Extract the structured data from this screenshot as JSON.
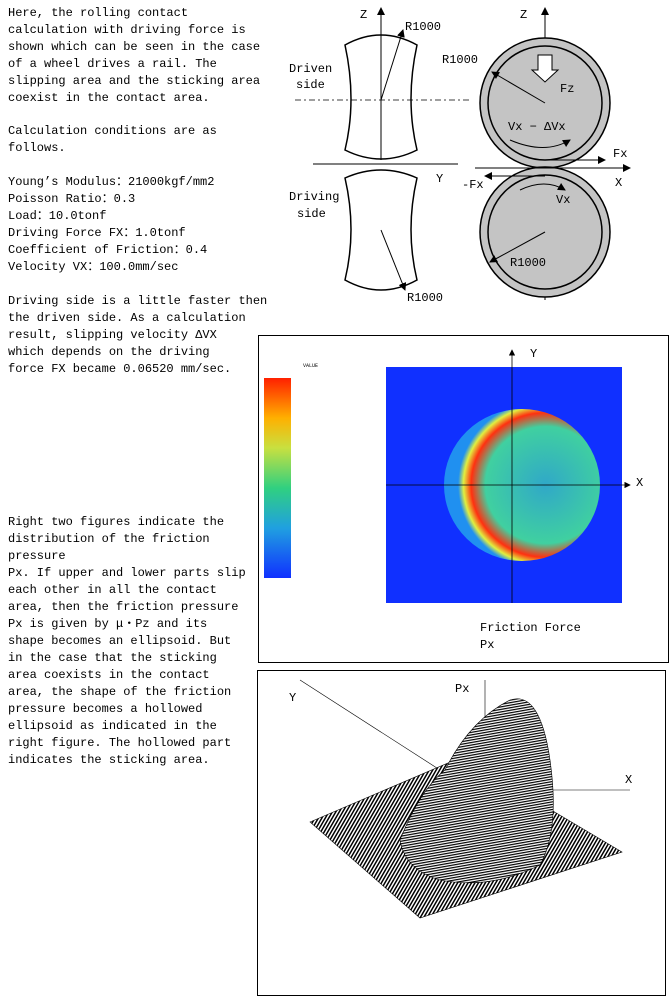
{
  "text": {
    "paragraphs": [
      [
        "Here, the rolling contact",
        "calculation with driving force is",
        "shown which can be seen in the case",
        "of a wheel drives a rail. The",
        "slipping area and the sticking area",
        "coexist in the contact area."
      ],
      [
        "Calculation conditions are as",
        "follows."
      ],
      [
        "Young’s Modulus：21000kgf/mm2",
        "Poisson Ratio：0.3",
        "Load：10.0tonf",
        "Driving Force FX：1.0tonf",
        "Coefficient of Friction：0.4",
        "Velocity VX：100.0mm/sec"
      ],
      [
        "Driving side is a little faster then",
        "the driven side. As a calculation",
        "result, slipping velocity ΔVX",
        "which depends on the driving",
        "force FX became 0.06520 mm/sec."
      ],
      [
        "Right two figures indicate the",
        "distribution of the friction",
        "pressure",
        "Px. If upper and lower parts slip",
        "each other in all the contact",
        "area, then the friction pressure",
        "Px is given by μ・Pz and its",
        "shape becomes an ellipsoid. But",
        "in the case that the sticking",
        "area coexists in the contact",
        "area, the shape of the friction",
        "pressure becomes a hollowed",
        "ellipsoid as indicated in the",
        "right figure. The hollowed part",
        "indicates the sticking area."
      ]
    ]
  },
  "figure1": {
    "rail_axis_z": "Z",
    "rail_radius_top": "R1000",
    "driven_label": [
      "Driven",
      "side"
    ],
    "driving_label": [
      "Driving",
      "side"
    ],
    "rail_axis_y": "Y",
    "rail_radius_bottom": "R1000",
    "wheel_axis_z": "Z",
    "wheel_radius_top": "R1000",
    "force_z": "Fz",
    "velocity_top": "Vx − ΔVx",
    "force_x": "Fx",
    "force_minus_x": "-Fx",
    "wheel_axis_x": "X",
    "velocity_bottom": "Vx",
    "wheel_radius_bottom": "R1000"
  },
  "figure2": {
    "legend_title": "VALUE",
    "axis_y": "Y",
    "axis_x": "X",
    "caption": [
      "Friction Force",
      "Px"
    ]
  },
  "figure3": {
    "axis_y": "Y",
    "axis_z": "Px",
    "axis_x": "X"
  }
}
